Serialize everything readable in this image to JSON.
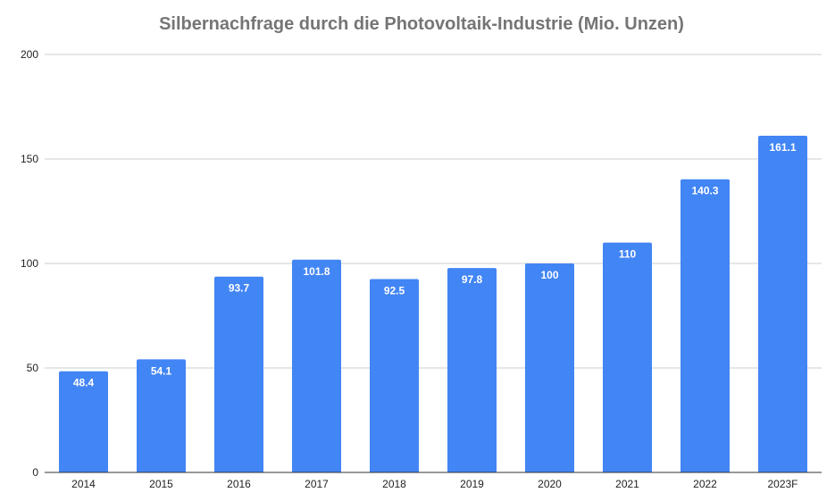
{
  "chart_data": {
    "type": "bar",
    "title": "Silbernachfrage durch die Photovoltaik-Industrie (Mio. Unzen)",
    "xlabel": "",
    "ylabel": "",
    "categories": [
      "2014",
      "2015",
      "2016",
      "2017",
      "2018",
      "2019",
      "2020",
      "2021",
      "2022",
      "2023F"
    ],
    "values": [
      48.4,
      54.1,
      93.7,
      101.8,
      92.5,
      97.8,
      100,
      110,
      140.3,
      161.1
    ],
    "data_labels": [
      "48.4",
      "54.1",
      "93.7",
      "101.8",
      "92.5",
      "97.8",
      "100",
      "110",
      "140.3",
      "161.1"
    ],
    "ylim": [
      0,
      200
    ],
    "yticks": [
      "0",
      "50",
      "100",
      "150",
      "200"
    ],
    "grid": true,
    "legend": "none",
    "bar_color": "#4285f4"
  }
}
